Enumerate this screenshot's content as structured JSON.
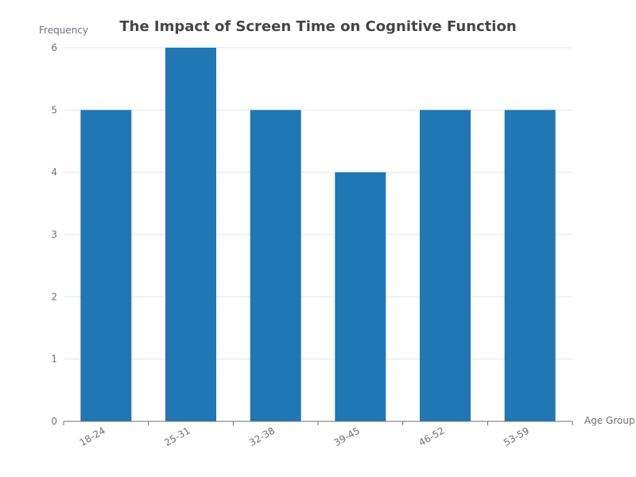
{
  "chart_data": {
    "type": "bar",
    "title": "The Impact of Screen Time on Cognitive Function",
    "xlabel": "Age Group",
    "ylabel": "Frequency",
    "categories": [
      "18-24",
      "25-31",
      "32-38",
      "39-45",
      "46-52",
      "53-59"
    ],
    "values": [
      5,
      6,
      5,
      4,
      5,
      5
    ],
    "ylim": [
      0,
      6
    ],
    "yticks": [
      0,
      1,
      2,
      3,
      4,
      5,
      6
    ],
    "grid": true,
    "bar_color": "#1f77b4",
    "x_tick_rotation": "rotated"
  }
}
